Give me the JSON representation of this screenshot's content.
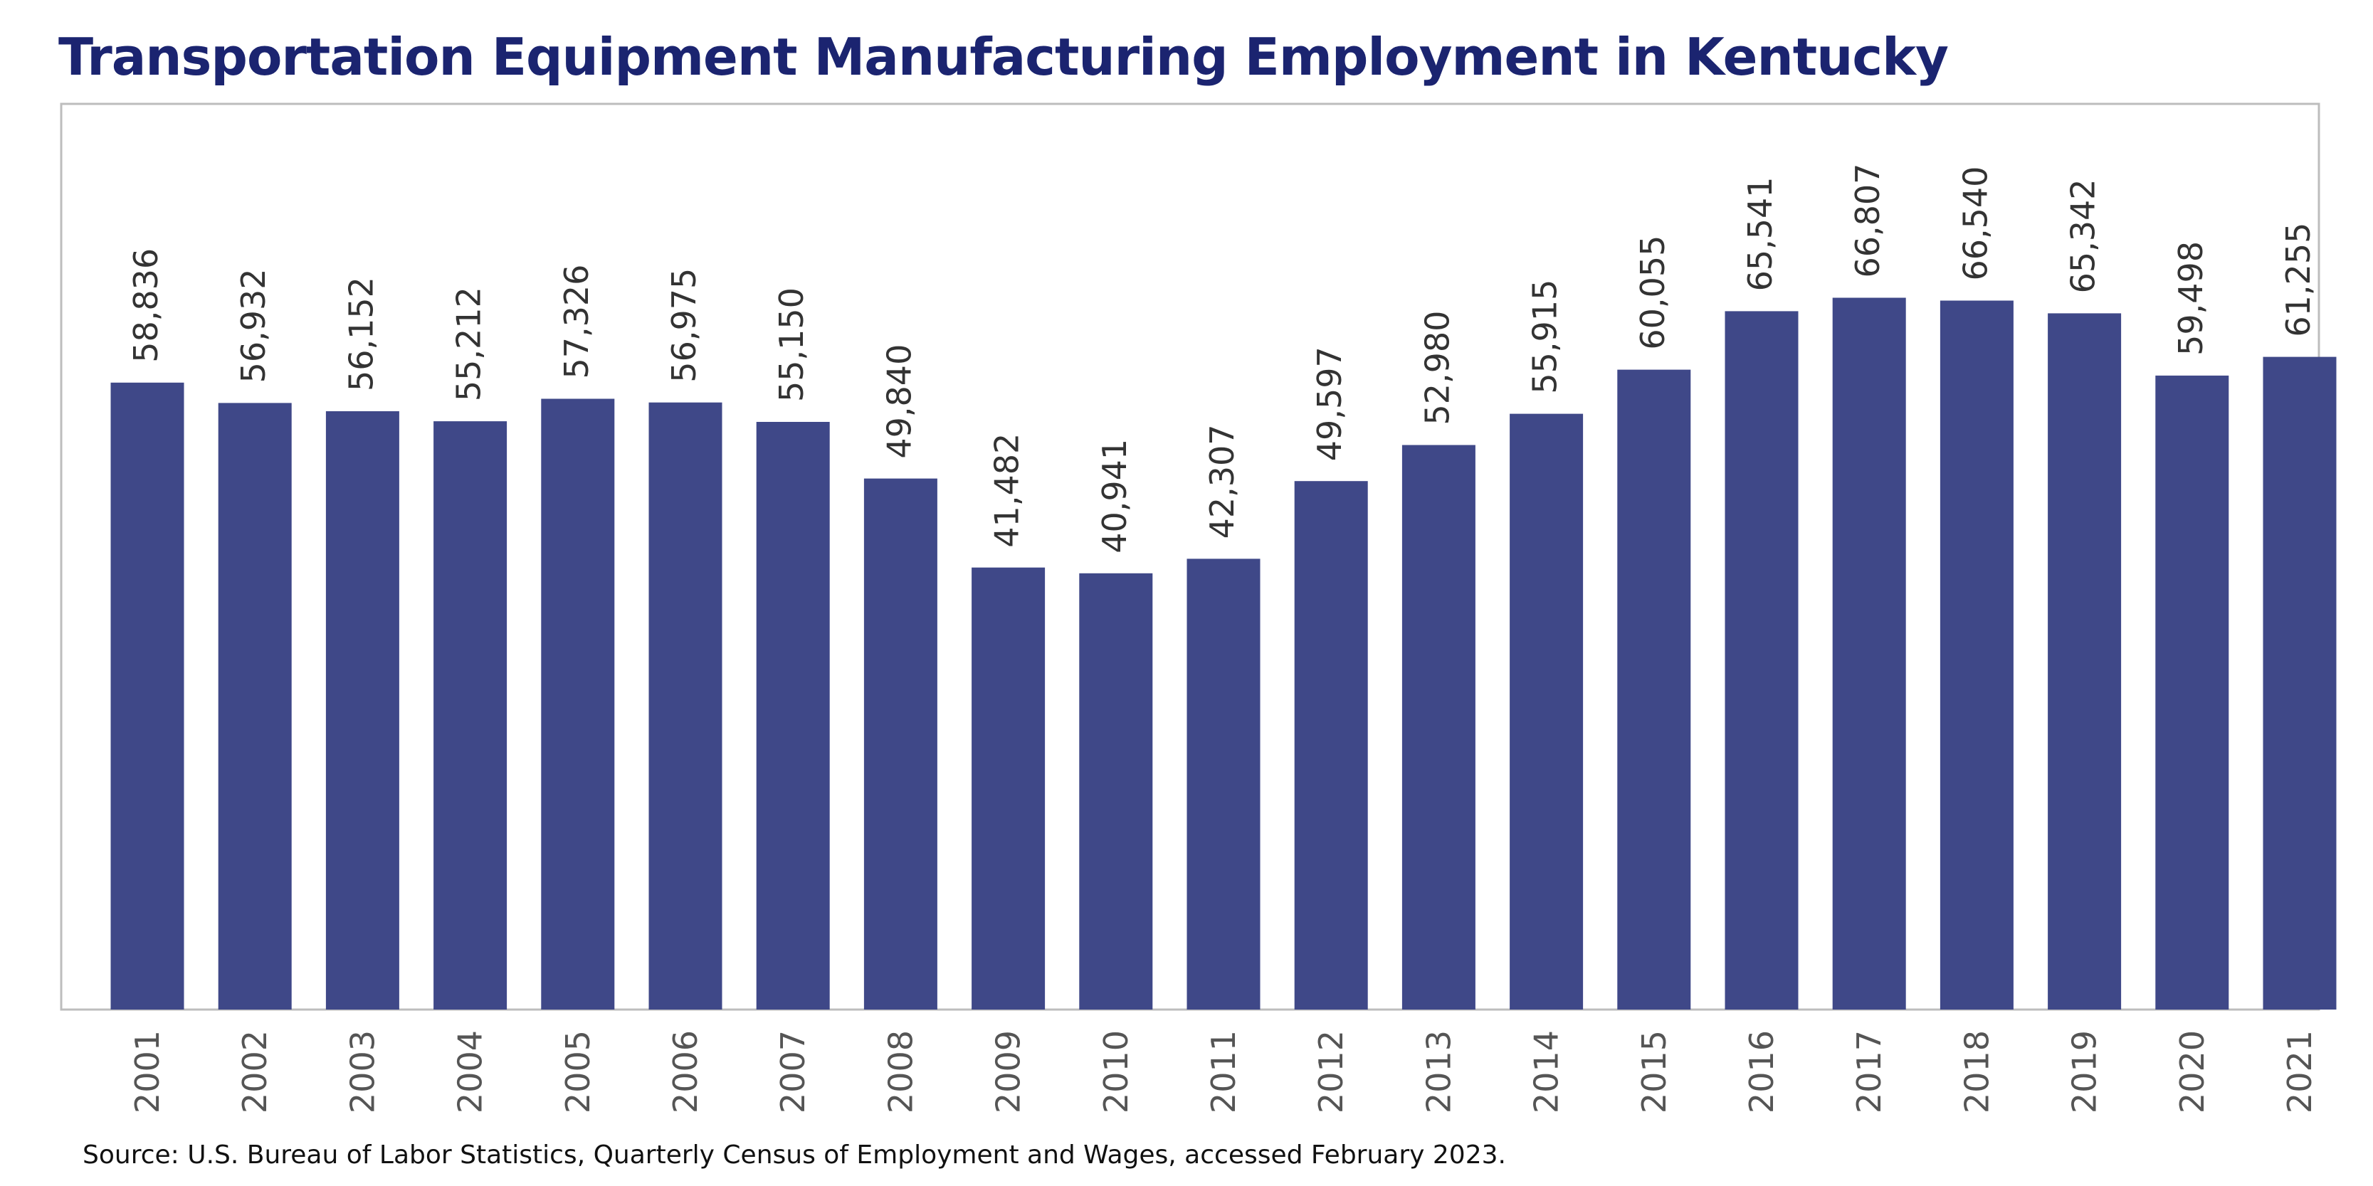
{
  "chart_data": {
    "type": "bar",
    "title": "Transportation Equipment Manufacturing Employment in Kentucky",
    "categories": [
      "2001",
      "2002",
      "2003",
      "2004",
      "2005",
      "2006",
      "2007",
      "2008",
      "2009",
      "2010",
      "2011",
      "2012",
      "2013",
      "2014",
      "2015",
      "2016",
      "2017",
      "2018",
      "2019",
      "2020",
      "2021"
    ],
    "values": [
      58836,
      56932,
      56152,
      55212,
      57326,
      56975,
      55150,
      49840,
      41482,
      40941,
      42307,
      49597,
      52980,
      55915,
      60055,
      65541,
      66807,
      66540,
      65342,
      59498,
      61255
    ],
    "data_labels": [
      "58,836",
      "56,932",
      "56,152",
      "55,212",
      "57,326",
      "56,975",
      "55,150",
      "49,840",
      "41,482",
      "40,941",
      "42,307",
      "49,597",
      "52,980",
      "55,915",
      "60,055",
      "65,541",
      "66,807",
      "66,540",
      "65,342",
      "59,498",
      "61,255"
    ],
    "xlabel": "",
    "ylabel": "",
    "ylim": [
      0,
      85000
    ],
    "grid": false,
    "legend": "none",
    "bar_color": "#3f4888",
    "title_color": "#1b2470"
  },
  "source": "Source: U.S. Bureau of Labor Statistics, Quarterly Census of Employment and Wages, accessed February 2023."
}
